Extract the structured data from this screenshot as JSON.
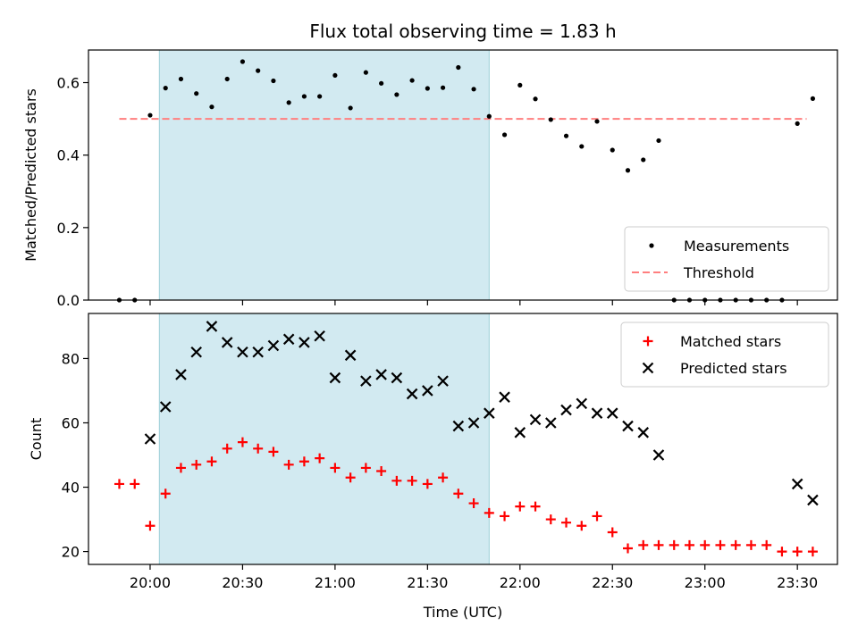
{
  "chart_data": {
    "type": "scatter",
    "title": "Flux total observing time = 1.83 h",
    "xlabel": "Time (UTC)",
    "x_ticks": [
      "20:00",
      "20:30",
      "21:00",
      "21:30",
      "22:00",
      "22:30",
      "23:00",
      "23:30"
    ],
    "highlight_span": {
      "start": "20:03",
      "end": "21:50"
    },
    "colors": {
      "measurements": "#000000",
      "threshold": "#ff7f7f",
      "matched": "#ff0000",
      "predicted": "#000000",
      "span": "#add8e6"
    },
    "panels": [
      {
        "ylabel": "Matched/Predicted stars",
        "ylim": [
          0,
          0.69
        ],
        "y_ticks": [
          "0.0",
          "0.2",
          "0.4",
          "0.6"
        ],
        "legend_position": "lower right",
        "threshold": {
          "name": "Threshold",
          "value": 0.5,
          "x_range": [
            "19:50",
            "23:33"
          ]
        },
        "series": [
          {
            "name": "Measurements",
            "marker": "dot",
            "points": [
              [
                "19:50",
                0.0
              ],
              [
                "19:55",
                0.0
              ],
              [
                "20:00",
                0.51
              ],
              [
                "20:05",
                0.585
              ],
              [
                "20:10",
                0.61
              ],
              [
                "20:15",
                0.57
              ],
              [
                "20:20",
                0.533
              ],
              [
                "20:25",
                0.61
              ],
              [
                "20:30",
                0.658
              ],
              [
                "20:35",
                0.633
              ],
              [
                "20:40",
                0.605
              ],
              [
                "20:45",
                0.545
              ],
              [
                "20:50",
                0.562
              ],
              [
                "20:55",
                0.562
              ],
              [
                "21:00",
                0.62
              ],
              [
                "21:05",
                0.53
              ],
              [
                "21:10",
                0.628
              ],
              [
                "21:15",
                0.598
              ],
              [
                "21:20",
                0.567
              ],
              [
                "21:25",
                0.606
              ],
              [
                "21:30",
                0.584
              ],
              [
                "21:35",
                0.586
              ],
              [
                "21:40",
                0.642
              ],
              [
                "21:45",
                0.582
              ],
              [
                "21:50",
                0.507
              ],
              [
                "21:55",
                0.456
              ],
              [
                "22:00",
                0.593
              ],
              [
                "22:05",
                0.555
              ],
              [
                "22:10",
                0.498
              ],
              [
                "22:15",
                0.453
              ],
              [
                "22:20",
                0.424
              ],
              [
                "22:25",
                0.493
              ],
              [
                "22:30",
                0.414
              ],
              [
                "22:35",
                0.358
              ],
              [
                "22:40",
                0.387
              ],
              [
                "22:45",
                0.44
              ],
              [
                "22:50",
                0.0
              ],
              [
                "22:55",
                0.0
              ],
              [
                "23:00",
                0.0
              ],
              [
                "23:05",
                0.0
              ],
              [
                "23:10",
                0.0
              ],
              [
                "23:15",
                0.0
              ],
              [
                "23:20",
                0.0
              ],
              [
                "23:25",
                0.0
              ],
              [
                "23:30",
                0.487
              ],
              [
                "23:35",
                0.556
              ]
            ]
          }
        ]
      },
      {
        "ylabel": "Count",
        "ylim": [
          16,
          94
        ],
        "y_ticks": [
          "20",
          "40",
          "60",
          "80"
        ],
        "legend_position": "upper right",
        "series": [
          {
            "name": "Matched stars",
            "marker": "plus",
            "points": [
              [
                "19:50",
                41
              ],
              [
                "19:55",
                41
              ],
              [
                "20:00",
                28
              ],
              [
                "20:05",
                38
              ],
              [
                "20:10",
                46
              ],
              [
                "20:15",
                47
              ],
              [
                "20:20",
                48
              ],
              [
                "20:25",
                52
              ],
              [
                "20:30",
                54
              ],
              [
                "20:35",
                52
              ],
              [
                "20:40",
                51
              ],
              [
                "20:45",
                47
              ],
              [
                "20:50",
                48
              ],
              [
                "20:55",
                49
              ],
              [
                "21:00",
                46
              ],
              [
                "21:05",
                43
              ],
              [
                "21:10",
                46
              ],
              [
                "21:15",
                45
              ],
              [
                "21:20",
                42
              ],
              [
                "21:25",
                42
              ],
              [
                "21:30",
                41
              ],
              [
                "21:35",
                43
              ],
              [
                "21:40",
                38
              ],
              [
                "21:45",
                35
              ],
              [
                "21:50",
                32
              ],
              [
                "21:55",
                31
              ],
              [
                "22:00",
                34
              ],
              [
                "22:05",
                34
              ],
              [
                "22:10",
                30
              ],
              [
                "22:15",
                29
              ],
              [
                "22:20",
                28
              ],
              [
                "22:25",
                31
              ],
              [
                "22:30",
                26
              ],
              [
                "22:35",
                21
              ],
              [
                "22:40",
                22
              ],
              [
                "22:45",
                22
              ],
              [
                "22:50",
                22
              ],
              [
                "22:55",
                22
              ],
              [
                "23:00",
                22
              ],
              [
                "23:05",
                22
              ],
              [
                "23:10",
                22
              ],
              [
                "23:15",
                22
              ],
              [
                "23:20",
                22
              ],
              [
                "23:25",
                20
              ],
              [
                "23:30",
                20
              ],
              [
                "23:35",
                20
              ]
            ]
          },
          {
            "name": "Predicted stars",
            "marker": "x",
            "points": [
              [
                "20:00",
                55
              ],
              [
                "20:05",
                65
              ],
              [
                "20:10",
                75
              ],
              [
                "20:15",
                82
              ],
              [
                "20:20",
                90
              ],
              [
                "20:25",
                85
              ],
              [
                "20:30",
                82
              ],
              [
                "20:35",
                82
              ],
              [
                "20:40",
                84
              ],
              [
                "20:45",
                86
              ],
              [
                "20:50",
                85
              ],
              [
                "20:55",
                87
              ],
              [
                "21:00",
                74
              ],
              [
                "21:05",
                81
              ],
              [
                "21:10",
                73
              ],
              [
                "21:15",
                75
              ],
              [
                "21:20",
                74
              ],
              [
                "21:25",
                69
              ],
              [
                "21:30",
                70
              ],
              [
                "21:35",
                73
              ],
              [
                "21:40",
                59
              ],
              [
                "21:45",
                60
              ],
              [
                "21:50",
                63
              ],
              [
                "21:55",
                68
              ],
              [
                "22:00",
                57
              ],
              [
                "22:05",
                61
              ],
              [
                "22:10",
                60
              ],
              [
                "22:15",
                64
              ],
              [
                "22:20",
                66
              ],
              [
                "22:25",
                63
              ],
              [
                "22:30",
                63
              ],
              [
                "22:35",
                59
              ],
              [
                "22:40",
                57
              ],
              [
                "22:45",
                50
              ],
              [
                "23:30",
                41
              ],
              [
                "23:35",
                36
              ]
            ]
          }
        ]
      }
    ]
  }
}
